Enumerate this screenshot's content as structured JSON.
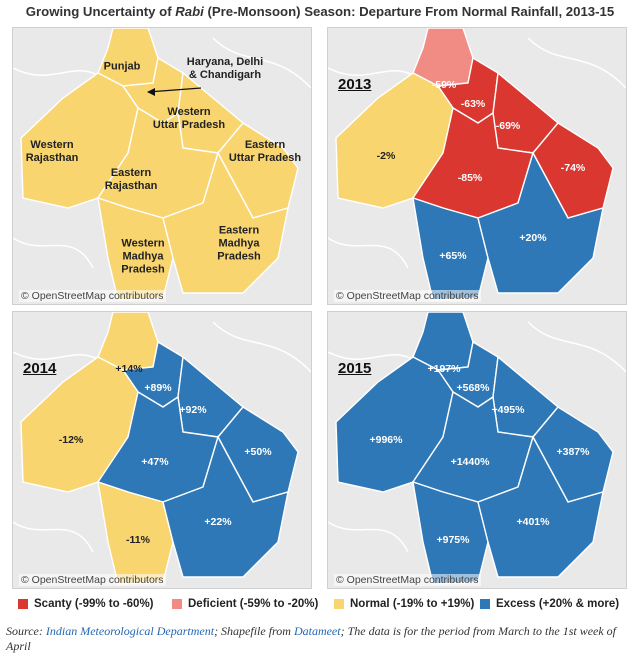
{
  "title": {
    "prefix": "Growing Uncertainty of ",
    "italic": "Rabi",
    "suffix": " (Pre-Monsoon) Season: Departure From Normal Rainfall, 2013-15"
  },
  "colors": {
    "scanty": "#d9372f",
    "deficient": "#f08c84",
    "normal": "#f8d56e",
    "excess": "#2f78b7",
    "land": "#e9e9e9"
  },
  "attribution": "© OpenStreetMap contributors",
  "map_base": {
    "regions": [
      {
        "name_line1": "Punjab",
        "name_line2": ""
      },
      {
        "name_line1": "Haryana, Delhi",
        "name_line2": "& Chandigarh"
      },
      {
        "name_line1": "Western",
        "name_line2": "Uttar Pradesh"
      },
      {
        "name_line1": "Eastern",
        "name_line2": "Uttar Pradesh"
      },
      {
        "name_line1": "Western",
        "name_line2": "Rajasthan"
      },
      {
        "name_line1": "Eastern",
        "name_line2": "Rajasthan"
      },
      {
        "name_line1": "Western",
        "name_line2": "Madhya",
        "name_line3": "Pradesh"
      },
      {
        "name_line1": "Eastern",
        "name_line2": "Madhya",
        "name_line3": "Pradesh"
      }
    ]
  },
  "panels": [
    {
      "year": "2013",
      "values": {
        "punjab": "-59%",
        "haryana": "-63%",
        "wup": "-69%",
        "eup": "-74%",
        "wraj": "-2%",
        "eraj": "-85%",
        "wmp": "+65%",
        "emp": "+20%"
      },
      "categories": {
        "punjab": "deficient",
        "haryana": "scanty",
        "wup": "scanty",
        "eup": "scanty",
        "wraj": "normal",
        "eraj": "scanty",
        "wmp": "excess",
        "emp": "excess"
      }
    },
    {
      "year": "2014",
      "values": {
        "punjab": "+14%",
        "haryana": "+89%",
        "wup": "+92%",
        "eup": "+50%",
        "wraj": "-12%",
        "eraj": "+47%",
        "wmp": "-11%",
        "emp": "+22%"
      },
      "categories": {
        "punjab": "normal",
        "haryana": "excess",
        "wup": "excess",
        "eup": "excess",
        "wraj": "normal",
        "eraj": "excess",
        "wmp": "normal",
        "emp": "excess"
      }
    },
    {
      "year": "2015",
      "values": {
        "punjab": "+197%",
        "haryana": "+568%",
        "wup": "+495%",
        "eup": "+387%",
        "wraj": "+996%",
        "eraj": "+1440%",
        "wmp": "+975%",
        "emp": "+401%"
      },
      "categories": {
        "punjab": "excess",
        "haryana": "excess",
        "wup": "excess",
        "eup": "excess",
        "wraj": "excess",
        "eraj": "excess",
        "wmp": "excess",
        "emp": "excess"
      }
    }
  ],
  "legend": [
    {
      "label": "Scanty (-99% to -60%)",
      "color": "#d9372f"
    },
    {
      "label": "Deficient (-59% to -20%)",
      "color": "#f08c84"
    },
    {
      "label": "Normal (-19% to +19%)",
      "color": "#f8d56e"
    },
    {
      "label": "Excess (+20% & more)",
      "color": "#2f78b7"
    }
  ],
  "source": {
    "label": "Source: ",
    "link1": "Indian Meteorological Department",
    "mid": "; Shapefile from ",
    "link2": "Datameet",
    "tail": "; The data is for the period from March to the 1st week of April"
  }
}
